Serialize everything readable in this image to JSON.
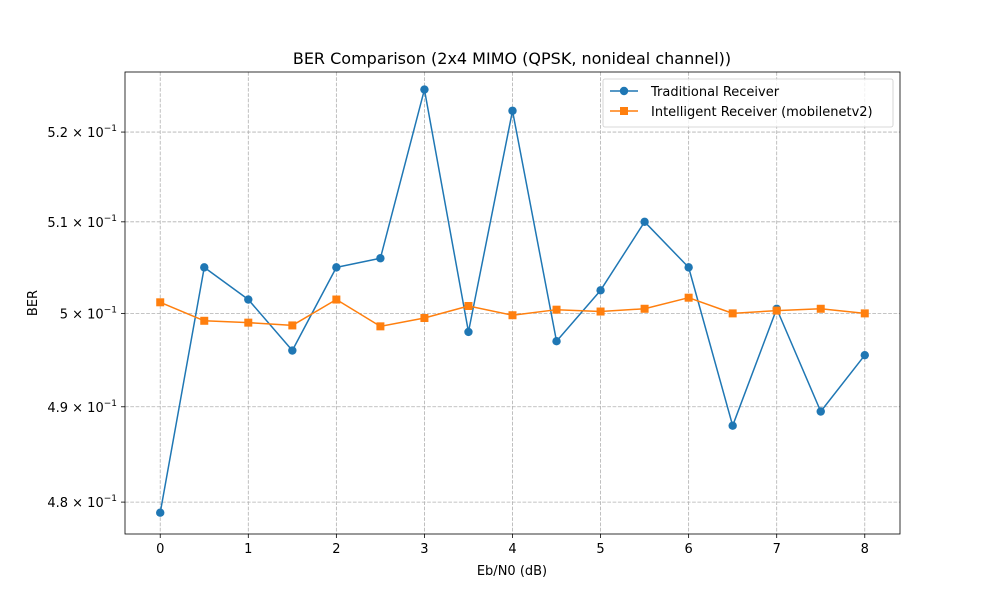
{
  "chart_data": {
    "type": "line",
    "title": "BER Comparison (2x4 MIMO (QPSK, nonideal channel))",
    "xlabel": "Eb/N0 (dB)",
    "ylabel": "BER",
    "yscale": "log",
    "xlim": [
      -0.4,
      8.4
    ],
    "ylim": [
      0.4767,
      0.5268
    ],
    "grid": true,
    "legend_position": "top-right",
    "x_ticks": [
      0,
      1,
      2,
      3,
      4,
      5,
      6,
      7,
      8
    ],
    "x_tick_labels": [
      "0",
      "1",
      "2",
      "3",
      "4",
      "5",
      "6",
      "7",
      "8"
    ],
    "y_ticks": [
      0.48,
      0.49,
      0.5,
      0.51,
      0.52
    ],
    "y_tick_labels": [
      {
        "mantissa": "4.8",
        "exp": "−1"
      },
      {
        "mantissa": "4.9",
        "exp": "−1"
      },
      {
        "mantissa": "5",
        "exp": "−1"
      },
      {
        "mantissa": "5.1",
        "exp": "−1"
      },
      {
        "mantissa": "5.2",
        "exp": "−1"
      }
    ],
    "x": [
      0,
      0.5,
      1,
      1.5,
      2,
      2.5,
      3,
      3.5,
      4,
      4.5,
      5,
      5.5,
      6,
      6.5,
      7,
      7.5,
      8
    ],
    "series": [
      {
        "name": "Traditional Receiver",
        "color": "#1f77b4",
        "marker": "circle",
        "values": [
          0.4789,
          0.505,
          0.5015,
          0.496,
          0.505,
          0.506,
          0.5248,
          0.498,
          0.5224,
          0.497,
          0.5025,
          0.51,
          0.505,
          0.488,
          0.5005,
          0.4895,
          0.4955
        ]
      },
      {
        "name": "Intelligent Receiver (mobilenetv2)",
        "color": "#ff7f0e",
        "marker": "square",
        "values": [
          0.5012,
          0.4992,
          0.499,
          0.4987,
          0.5015,
          0.4986,
          0.4995,
          0.5008,
          0.4998,
          0.5004,
          0.5002,
          0.5005,
          0.5017,
          0.5,
          0.5003,
          0.5005,
          0.5
        ]
      }
    ]
  }
}
